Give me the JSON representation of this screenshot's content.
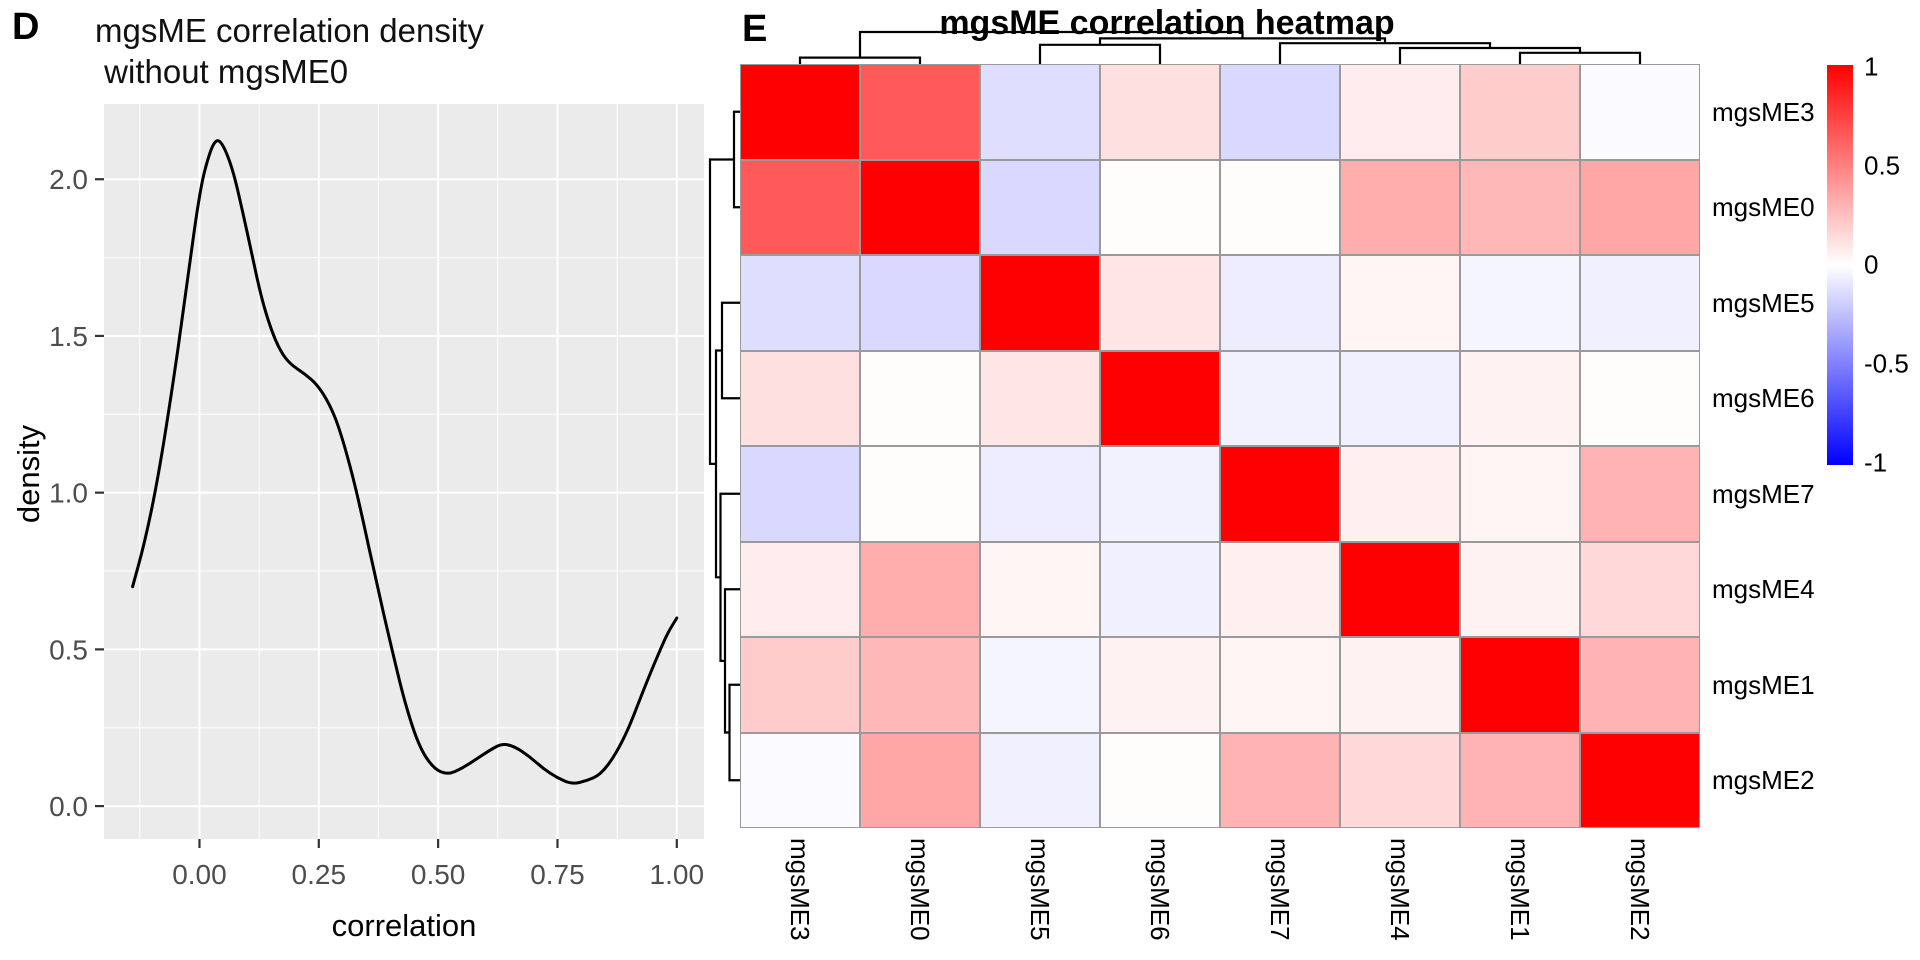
{
  "panels": {
    "d": {
      "label": "D",
      "title_line1": "mgsME correlation density",
      "title_line2": " without mgsME0",
      "xlabel": "correlation",
      "ylabel": "density"
    },
    "e": {
      "label": "E",
      "title": "mgsME correlation heatmap"
    }
  },
  "chart_data": [
    {
      "type": "line",
      "title": "mgsME correlation density without mgsME0",
      "xlabel": "correlation",
      "ylabel": "density",
      "panel_bg": "#EBEBEB",
      "grid_color": "#FFFFFF",
      "line_color": "#000000",
      "tick_label_color": "#4D4D4D",
      "grid": true,
      "legend": "none",
      "xlim": [
        -0.2,
        1.057
      ],
      "ylim": [
        -0.105,
        2.24
      ],
      "x_ticks": {
        "values": [
          0,
          0.25,
          0.5,
          0.75,
          1.0
        ],
        "labels": [
          "0.00",
          "0.25",
          "0.50",
          "0.75",
          "1.00"
        ]
      },
      "y_ticks": {
        "values": [
          0,
          0.5,
          1.0,
          1.5,
          2.0
        ],
        "labels": [
          "0.0",
          "0.5",
          "1.0",
          "1.5",
          "2.0"
        ]
      },
      "x_minor": [
        -0.125,
        0.125,
        0.375,
        0.625,
        0.875
      ],
      "y_minor": [
        0.25,
        0.75,
        1.25,
        1.75
      ],
      "points": [
        [
          -0.14,
          0.7
        ],
        [
          -0.115,
          0.84
        ],
        [
          -0.09,
          1.02
        ],
        [
          -0.06,
          1.3
        ],
        [
          -0.03,
          1.62
        ],
        [
          0.0,
          1.96
        ],
        [
          0.02,
          2.08
        ],
        [
          0.035,
          2.13
        ],
        [
          0.05,
          2.11
        ],
        [
          0.07,
          2.03
        ],
        [
          0.09,
          1.9
        ],
        [
          0.11,
          1.76
        ],
        [
          0.13,
          1.62
        ],
        [
          0.15,
          1.52
        ],
        [
          0.17,
          1.45
        ],
        [
          0.19,
          1.41
        ],
        [
          0.22,
          1.38
        ],
        [
          0.25,
          1.34
        ],
        [
          0.28,
          1.26
        ],
        [
          0.3,
          1.17
        ],
        [
          0.32,
          1.06
        ],
        [
          0.34,
          0.93
        ],
        [
          0.37,
          0.72
        ],
        [
          0.4,
          0.52
        ],
        [
          0.43,
          0.33
        ],
        [
          0.46,
          0.19
        ],
        [
          0.49,
          0.12
        ],
        [
          0.52,
          0.1
        ],
        [
          0.55,
          0.12
        ],
        [
          0.58,
          0.15
        ],
        [
          0.61,
          0.18
        ],
        [
          0.635,
          0.2
        ],
        [
          0.66,
          0.19
        ],
        [
          0.69,
          0.16
        ],
        [
          0.72,
          0.12
        ],
        [
          0.75,
          0.09
        ],
        [
          0.78,
          0.07
        ],
        [
          0.81,
          0.08
        ],
        [
          0.84,
          0.1
        ],
        [
          0.87,
          0.16
        ],
        [
          0.9,
          0.25
        ],
        [
          0.93,
          0.37
        ],
        [
          0.96,
          0.48
        ],
        [
          0.98,
          0.55
        ],
        [
          1.0,
          0.6
        ]
      ]
    },
    {
      "type": "heatmap",
      "title": "mgsME correlation heatmap",
      "labels": [
        "mgsME3",
        "mgsME0",
        "mgsME5",
        "mgsME6",
        "mgsME7",
        "mgsME4",
        "mgsME1",
        "mgsME2"
      ],
      "matrix": [
        [
          1.0,
          0.65,
          -0.13,
          0.12,
          -0.15,
          0.07,
          0.2,
          -0.02
        ],
        [
          0.65,
          1.0,
          -0.15,
          0.01,
          0.01,
          0.32,
          0.28,
          0.35
        ],
        [
          -0.13,
          -0.15,
          1.0,
          0.1,
          -0.07,
          0.04,
          -0.04,
          -0.06
        ],
        [
          0.12,
          0.01,
          0.1,
          1.0,
          -0.05,
          -0.06,
          0.05,
          0.01
        ],
        [
          -0.15,
          0.01,
          -0.07,
          -0.05,
          1.0,
          0.06,
          0.04,
          0.3
        ],
        [
          0.07,
          0.32,
          0.04,
          -0.06,
          0.06,
          1.0,
          0.05,
          0.15
        ],
        [
          0.2,
          0.28,
          -0.04,
          0.05,
          0.04,
          0.05,
          1.0,
          0.3
        ],
        [
          -0.02,
          0.35,
          -0.06,
          0.01,
          0.3,
          0.15,
          0.3,
          1.0
        ]
      ],
      "color_scale": {
        "min": -1,
        "mid": 0,
        "max": 1,
        "min_color": "#0000FF",
        "mid_color": "#FFFFFF",
        "max_color": "#FF0000"
      },
      "cell_border_color": "#9A9A9A",
      "colorbar_ticks": {
        "values": [
          1,
          0.5,
          0,
          -0.5,
          -1
        ],
        "labels": [
          "1",
          "0.5",
          "0",
          "-0.5",
          "-1"
        ]
      },
      "dendrogram": {
        "h": 1.0,
        "children": [
          {
            "h": 0.2,
            "children": [
              {
                "leaf": "mgsME3"
              },
              {
                "leaf": "mgsME0"
              }
            ]
          },
          {
            "h": 0.8,
            "children": [
              {
                "h": 0.6,
                "children": [
                  {
                    "leaf": "mgsME5"
                  },
                  {
                    "leaf": "mgsME6"
                  }
                ]
              },
              {
                "h": 0.65,
                "children": [
                  {
                    "leaf": "mgsME7"
                  },
                  {
                    "h": 0.5,
                    "children": [
                      {
                        "leaf": "mgsME4"
                      },
                      {
                        "h": 0.35,
                        "children": [
                          {
                            "leaf": "mgsME1"
                          },
                          {
                            "leaf": "mgsME2"
                          }
                        ]
                      }
                    ]
                  }
                ]
              }
            ]
          }
        ]
      }
    }
  ]
}
